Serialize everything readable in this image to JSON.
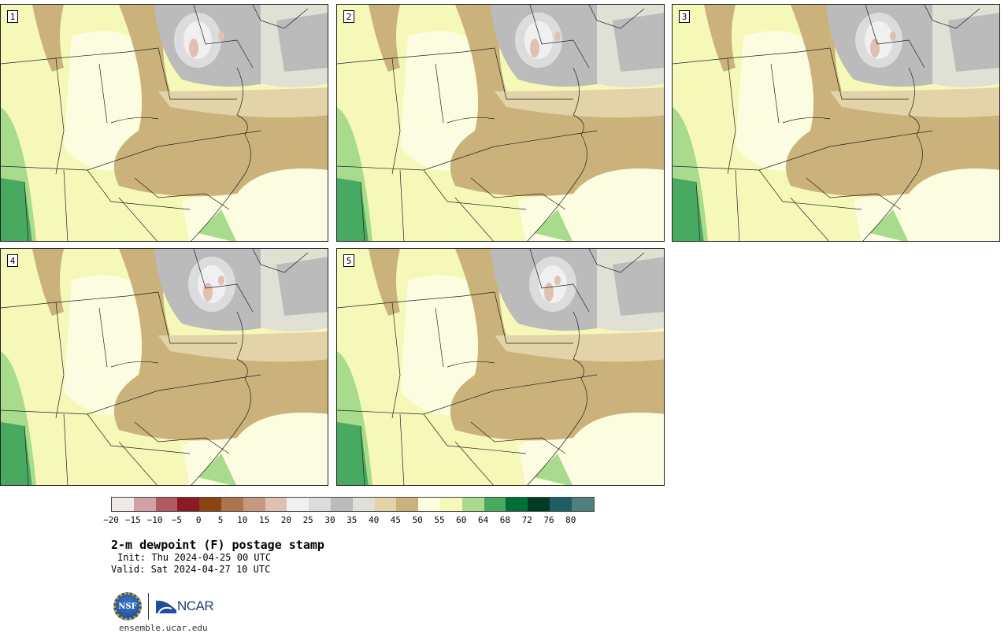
{
  "panels": [
    {
      "label": "1"
    },
    {
      "label": "2"
    },
    {
      "label": "3"
    },
    {
      "label": "4"
    },
    {
      "label": "5"
    }
  ],
  "colorbar": {
    "colors": [
      "#f3e8e8",
      "#d3a0a3",
      "#b15a60",
      "#8c1a22",
      "#8b4513",
      "#ae7450",
      "#c6997e",
      "#dfc1b1",
      "#f0f0f0",
      "#dcdcdc",
      "#bbbbbb",
      "#e0e0d4",
      "#e2d3a8",
      "#cbb27a",
      "#fcfce0",
      "#f6f8b8",
      "#a8dc8c",
      "#48aa60",
      "#007038",
      "#003c24",
      "#1e5e60",
      "#4e8080"
    ],
    "ticks": [
      "−20",
      "−15",
      "−10",
      "−5",
      "0",
      "5",
      "10",
      "15",
      "20",
      "25",
      "30",
      "35",
      "40",
      "45",
      "50",
      "55",
      "60",
      "64",
      "68",
      "72",
      "76",
      "80"
    ]
  },
  "title": "2-m dewpoint (F) postage stamp",
  "init": "Init: Thu 2024-04-25 00 UTC",
  "valid": "Valid: Sat 2024-04-27 10 UTC",
  "logo": {
    "nsf": "NSF",
    "ncar": "NCAR"
  },
  "site": "ensemble.ucar.edu"
}
